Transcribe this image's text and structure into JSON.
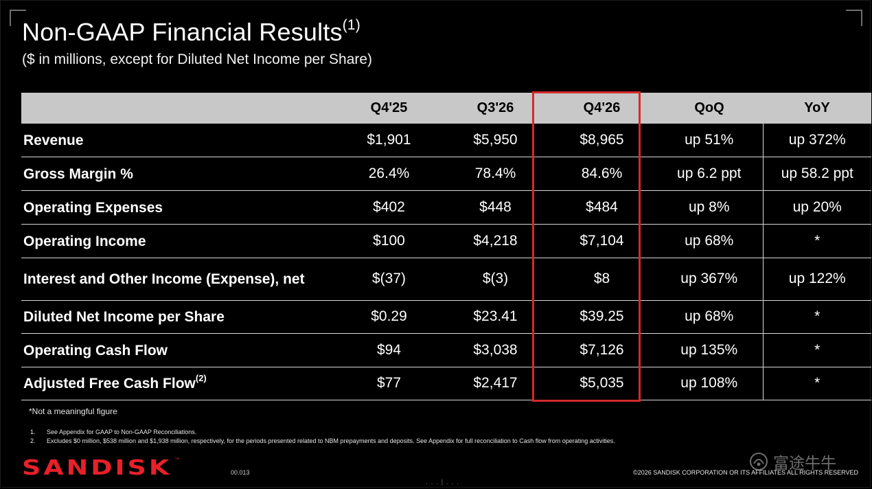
{
  "slide": {
    "title": "Non-GAAP Financial Results",
    "title_sup": "(1)",
    "subtitle": "($ in millions, except for Diluted Net Income per Share)"
  },
  "table": {
    "headers": [
      "",
      "Q4'25",
      "Q3'26",
      "Q4'26",
      "QoQ",
      "YoY"
    ],
    "rows": [
      {
        "label": "Revenue",
        "sup": "",
        "values": [
          "$1,901",
          "$5,950",
          "$8,965",
          "up 51%",
          "up 372%"
        ]
      },
      {
        "label": "Gross Margin %",
        "sup": "",
        "values": [
          "26.4%",
          "78.4%",
          "84.6%",
          "up 6.2 ppt",
          "up 58.2 ppt"
        ]
      },
      {
        "label": "Operating Expenses",
        "sup": "",
        "values": [
          "$402",
          "$448",
          "$484",
          "up 8%",
          "up 20%"
        ]
      },
      {
        "label": "Operating Income",
        "sup": "",
        "values": [
          "$100",
          "$4,218",
          "$7,104",
          "up 68%",
          "*"
        ]
      },
      {
        "label": "Interest and Other Income (Expense), net",
        "sup": "",
        "values": [
          "$(37)",
          "$(3)",
          "$8",
          "up 367%",
          "up 122%"
        ]
      },
      {
        "label": "Diluted Net Income per Share",
        "sup": "",
        "values": [
          "$0.29",
          "$23.41",
          "$39.25",
          "up 68%",
          "*"
        ]
      },
      {
        "label": "Operating Cash Flow",
        "sup": "",
        "values": [
          "$94",
          "$3,038",
          "$7,126",
          "up 135%",
          "*"
        ]
      },
      {
        "label": "Adjusted Free Cash Flow",
        "sup": "(2)",
        "values": [
          "$77",
          "$2,417",
          "$5,035",
          "up 108%",
          "*"
        ]
      }
    ],
    "highlight_color": "#d42a2a"
  },
  "notes": {
    "not_meaningful": "*Not a meaningful figure",
    "footnotes": [
      {
        "num": "1.",
        "text": "See Appendix for GAAP to Non-GAAP Reconciliations."
      },
      {
        "num": "2.",
        "text": "Excludes $0 million, $538 million and $1,938 million, respectively, for the periods presented related to NBM prepayments and deposits. See Appendix for full reconciliation to Cash flow from operating activities."
      }
    ]
  },
  "footer": {
    "logo_text": "SANDISK",
    "logo_mark": "™",
    "logo_color": "#e8202a",
    "page_number": "00.013",
    "copyright": "©2026 SANDISK CORPORATION OR ITS AFFILIATES ALL RIGHTS RESERVED",
    "watermark_text": "富途牛牛",
    "watermark_icon": "futu-logo-icon"
  }
}
